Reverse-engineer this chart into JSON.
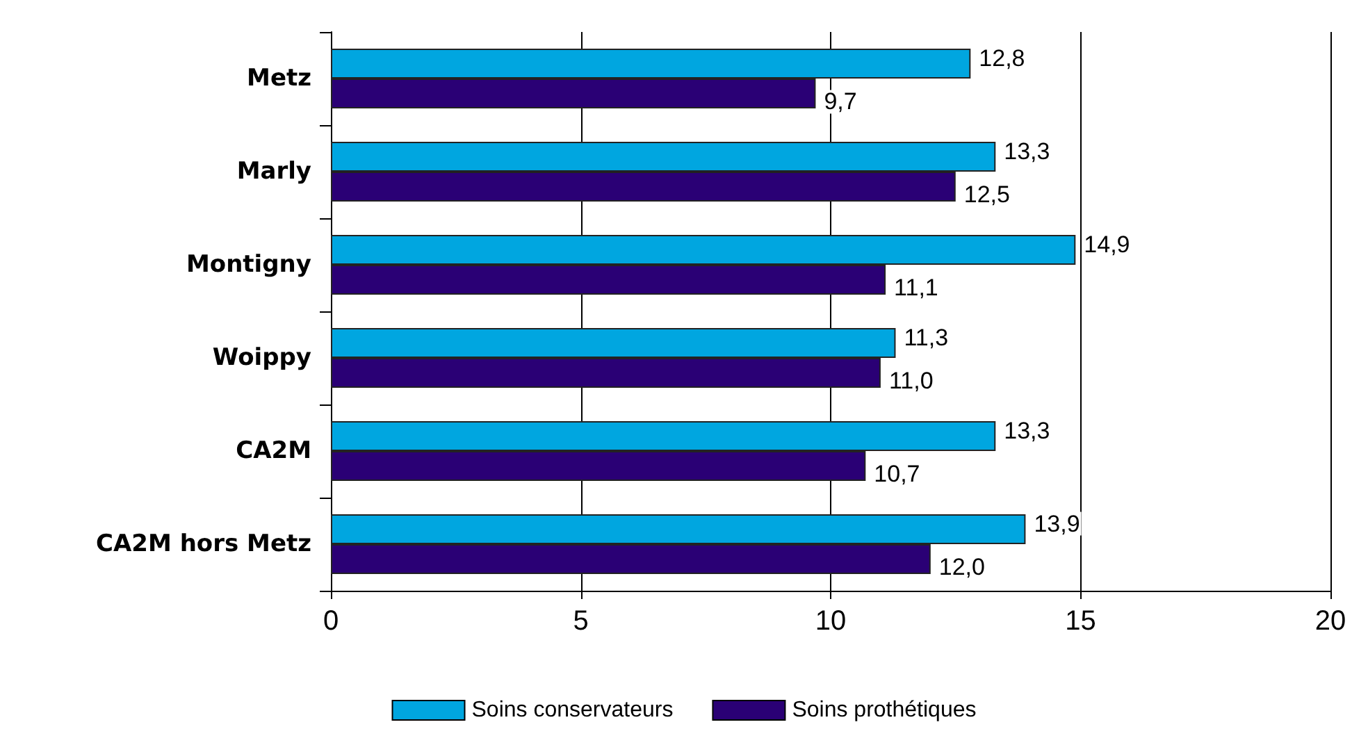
{
  "chart_data": {
    "type": "bar",
    "orientation": "horizontal",
    "categories": [
      "Metz",
      "Marly",
      "Montigny",
      "Woippy",
      "CA2M",
      "CA2M hors Metz"
    ],
    "series": [
      {
        "name": "Soins conservateurs",
        "color": "#00a6e0",
        "values": [
          12.8,
          13.3,
          14.9,
          11.3,
          13.3,
          13.9
        ],
        "value_labels": [
          "12,8",
          "13,3",
          "14,9",
          "11,3",
          "13,3",
          "13,9"
        ]
      },
      {
        "name": "Soins prothétiques",
        "color": "#2a0075",
        "values": [
          9.7,
          12.5,
          11.1,
          11.0,
          10.7,
          12.0
        ],
        "value_labels": [
          "9,7",
          "12,5",
          "11,1",
          "11,0",
          "10,7",
          "12,0"
        ]
      }
    ],
    "xlim": [
      0,
      20
    ],
    "xticks": [
      0,
      5,
      10,
      15,
      20
    ],
    "grid": "x",
    "legend": "bottom"
  }
}
